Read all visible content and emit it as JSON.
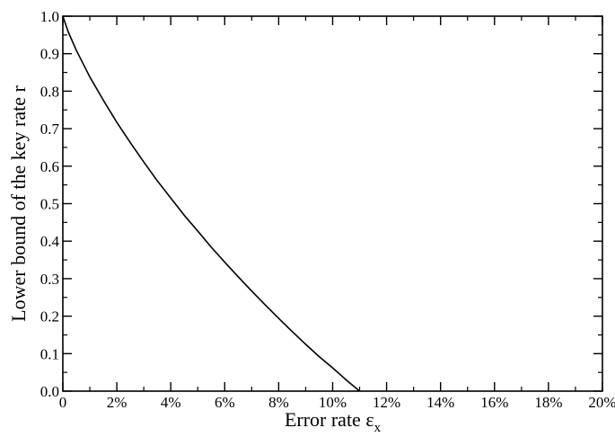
{
  "chart_data": {
    "type": "line",
    "title": "",
    "xlabel": "Error rate ε",
    "xlabel_subscript": "x",
    "ylabel": "Lower bound of the key rate r",
    "xlim": [
      0,
      0.2
    ],
    "ylim": [
      0,
      1.0
    ],
    "x_major_ticks": [
      0,
      0.02,
      0.04,
      0.06,
      0.08,
      0.1,
      0.12,
      0.14,
      0.16,
      0.18,
      0.2
    ],
    "x_tick_labels": [
      "0",
      "2%",
      "4%",
      "6%",
      "8%",
      "10%",
      "12%",
      "14%",
      "16%",
      "18%",
      "20%"
    ],
    "x_minor_step": 0.01,
    "y_major_ticks": [
      0,
      0.1,
      0.2,
      0.3,
      0.4,
      0.5,
      0.6,
      0.7,
      0.8,
      0.9,
      1.0
    ],
    "y_tick_labels": [
      "0.0",
      "0.1",
      "0.2",
      "0.3",
      "0.4",
      "0.5",
      "0.6",
      "0.7",
      "0.8",
      "0.9",
      "1.0"
    ],
    "y_minor_step": 0.05,
    "grid": false,
    "legend": "none",
    "series": [
      {
        "color": "#000000",
        "x": [
          0,
          0.002,
          0.005,
          0.01,
          0.015,
          0.02,
          0.025,
          0.03,
          0.035,
          0.04,
          0.045,
          0.05,
          0.055,
          0.06,
          0.065,
          0.07,
          0.075,
          0.08,
          0.085,
          0.09,
          0.095,
          0.1,
          0.105,
          0.11
        ],
        "y": [
          1.0,
          0.958,
          0.909,
          0.838,
          0.776,
          0.717,
          0.663,
          0.611,
          0.561,
          0.515,
          0.469,
          0.427,
          0.384,
          0.344,
          0.305,
          0.267,
          0.23,
          0.194,
          0.159,
          0.125,
          0.092,
          0.062,
          0.03,
          0.0
        ]
      }
    ]
  }
}
